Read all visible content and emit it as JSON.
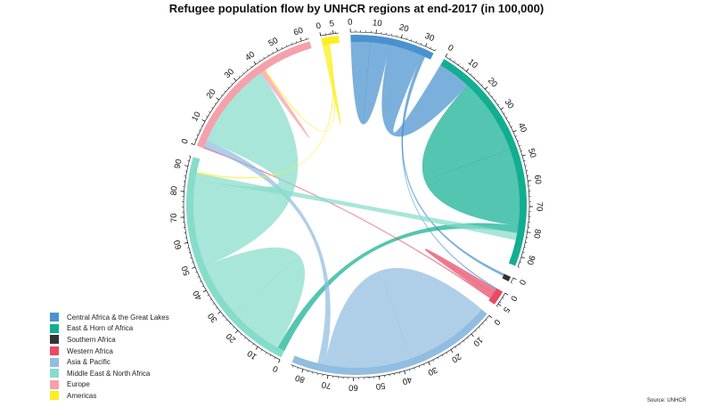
{
  "title": "Refugee population flow by UNHCR regions at end-2017 (in 100,000)",
  "source": "Source: UNHCR",
  "chart_data": {
    "type": "chord",
    "title": "Refugee population flow by UNHCR regions at end-2017 (in 100,000)",
    "regions": [
      {
        "name": "Central Africa & the Great Lakes",
        "color": "#4a92cf",
        "total": 34,
        "ticks": [
          0,
          10,
          20,
          30
        ]
      },
      {
        "name": "East & Horn of Africa",
        "color": "#12ae91",
        "total": 94,
        "ticks": [
          0,
          10,
          20,
          30,
          40,
          50,
          60,
          70,
          80,
          90
        ]
      },
      {
        "name": "Southern Africa",
        "color": "#333333",
        "total": 2,
        "ticks": [
          0
        ]
      },
      {
        "name": "Western Africa",
        "color": "#e84a65",
        "total": 6,
        "ticks": [
          0,
          5
        ]
      },
      {
        "name": "Asia & Pacific",
        "color": "#90bde0",
        "total": 85,
        "ticks": [
          0,
          10,
          20,
          30,
          40,
          50,
          60,
          70,
          80
        ]
      },
      {
        "name": "Middle East & North Africa",
        "color": "#86dccb",
        "total": 94,
        "ticks": [
          0,
          10,
          20,
          30,
          40,
          50,
          60,
          70,
          80,
          90
        ]
      },
      {
        "name": "Europe",
        "color": "#f5a1ab",
        "total": 63,
        "ticks": [
          0,
          10,
          20,
          30,
          40,
          50,
          60
        ]
      },
      {
        "name": "Americas",
        "color": "#fcee21",
        "total": 7,
        "ticks": [
          0,
          5
        ]
      }
    ],
    "flows": [
      {
        "from": "Central Africa & the Great Lakes",
        "to": "Central Africa & the Great Lakes",
        "value": 8
      },
      {
        "from": "Central Africa & the Great Lakes",
        "to": "East & Horn of Africa",
        "value": 14
      },
      {
        "from": "Central Africa & the Great Lakes",
        "to": "Southern Africa",
        "value": 1
      },
      {
        "from": "Central Africa & the Great Lakes",
        "to": "Western Africa",
        "value": 0.5
      },
      {
        "from": "East & Horn of Africa",
        "to": "East & Horn of Africa",
        "value": 32
      },
      {
        "from": "East & Horn of Africa",
        "to": "Middle East & North Africa",
        "value": 3
      },
      {
        "from": "Western Africa",
        "to": "Western Africa",
        "value": 2
      },
      {
        "from": "Western Africa",
        "to": "Europe",
        "value": 0.5
      },
      {
        "from": "Asia & Pacific",
        "to": "Asia & Pacific",
        "value": 36
      },
      {
        "from": "Asia & Pacific",
        "to": "Europe",
        "value": 3
      },
      {
        "from": "Middle East & North Africa",
        "to": "Middle East & North Africa",
        "value": 23
      },
      {
        "from": "Middle East & North Africa",
        "to": "Europe",
        "value": 36
      },
      {
        "from": "Middle East & North Africa",
        "to": "East & Horn of Africa",
        "value": 3
      },
      {
        "from": "Europe",
        "to": "Europe",
        "value": 1
      },
      {
        "from": "Americas",
        "to": "Americas",
        "value": 1
      },
      {
        "from": "Americas",
        "to": "Europe",
        "value": 0.5
      },
      {
        "from": "Americas",
        "to": "Middle East & North Africa",
        "value": 0.5
      }
    ]
  },
  "legend": [
    {
      "label": "Central Africa & the Great Lakes",
      "color": "#4a92cf"
    },
    {
      "label": "East & Horn of Africa",
      "color": "#12ae91"
    },
    {
      "label": "Southern Africa",
      "color": "#333333"
    },
    {
      "label": "Western Africa",
      "color": "#e84a65"
    },
    {
      "label": "Asia & Pacific",
      "color": "#90bde0"
    },
    {
      "label": "Middle East & North Africa",
      "color": "#86dccb"
    },
    {
      "label": "Europe",
      "color": "#f5a1ab"
    },
    {
      "label": "Americas",
      "color": "#fcee21"
    }
  ]
}
